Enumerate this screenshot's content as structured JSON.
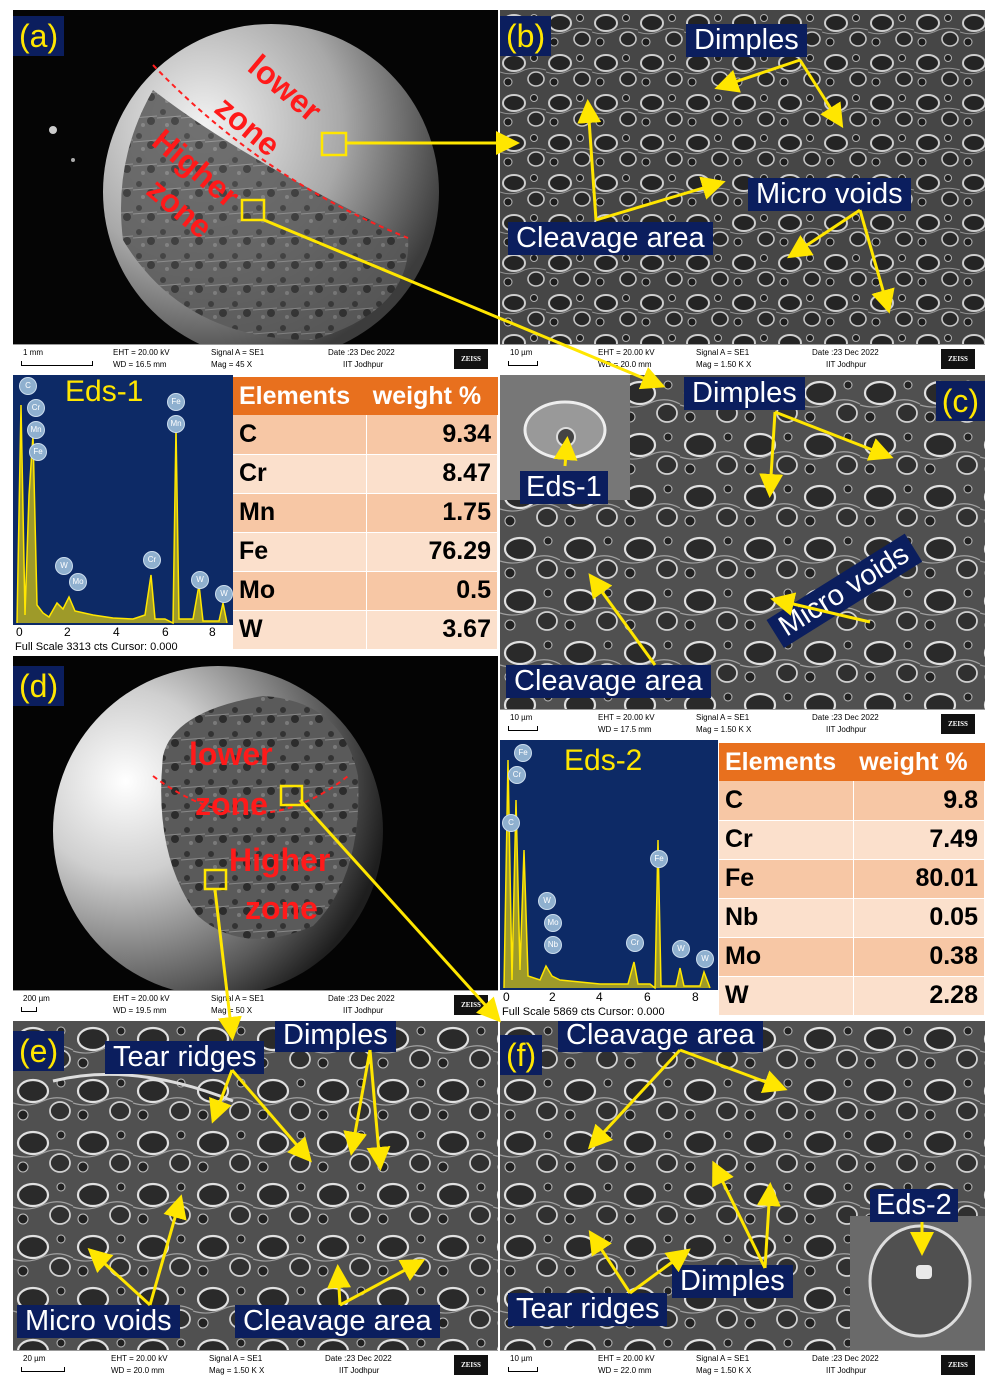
{
  "panels": {
    "a": {
      "label": "(a)",
      "zones": [
        "lower",
        "zone",
        "Higher",
        "zone"
      ]
    },
    "b": {
      "label": "(b)",
      "tags": [
        "Dimples",
        "Micro voids",
        "Cleavage area"
      ]
    },
    "c": {
      "label": "(c)",
      "tags": [
        "Dimples",
        "Cleavage area",
        "Micro voids"
      ],
      "inset": "Eds-1"
    },
    "d": {
      "label": "(d)",
      "zones": [
        "lower",
        "zone",
        "Higher",
        "zone"
      ]
    },
    "e": {
      "label": "(e)",
      "tags": [
        "Dimples",
        "Tear ridges",
        "Micro voids",
        "Cleavage area"
      ]
    },
    "f": {
      "label": "(f)",
      "tags": [
        "Cleavage area",
        "Dimples",
        "Tear ridges"
      ],
      "inset": "Eds-2"
    }
  },
  "info_bars": {
    "a": {
      "scale": "1 mm",
      "eht": "EHT = 20.00 kV",
      "wd": "WD = 16.5 mm",
      "signal": "Signal A = SE1",
      "mag": "Mag =    45 X",
      "date": "Date :23 Dec 2022",
      "org": "IIT Jodhpur",
      "brand": "ZEISS"
    },
    "b": {
      "scale": "10 µm",
      "eht": "EHT = 20.00 kV",
      "wd": "WD = 20.0 mm",
      "signal": "Signal A = SE1",
      "mag": "Mag =    1.50 K X",
      "date": "Date :23 Dec 2022",
      "org": "IIT Jodhpur",
      "brand": "ZEISS"
    },
    "c": {
      "scale": "10 µm",
      "eht": "EHT = 20.00 kV",
      "wd": "WD = 17.5 mm",
      "signal": "Signal A = SE1",
      "mag": "Mag =    1.50 K X",
      "date": "Date :23 Dec 2022",
      "org": "IIT Jodhpur",
      "brand": "ZEISS"
    },
    "d": {
      "scale": "200 µm",
      "eht": "EHT = 20.00 kV",
      "wd": "WD = 19.5 mm",
      "signal": "Signal A = SE1",
      "mag": "Mag =    50 X",
      "date": "Date :23 Dec 2022",
      "org": "IIT Jodhpur",
      "brand": "ZEISS"
    },
    "e": {
      "scale": "20 µm",
      "eht": "EHT = 20.00 kV",
      "wd": "WD = 20.0 mm",
      "signal": "Signal A = SE1",
      "mag": "Mag =    1.50 K X",
      "date": "Date :23 Dec 2022",
      "org": "IIT Jodhpur",
      "brand": "ZEISS"
    },
    "f": {
      "scale": "10 µm",
      "eht": "EHT = 20.00 kV",
      "wd": "WD = 22.0 mm",
      "signal": "Signal A = SE1",
      "mag": "Mag =    1.50 K X",
      "date": "Date :23 Dec 2022",
      "org": "IIT Jodhpur",
      "brand": "ZEISS"
    }
  },
  "eds1": {
    "title": "Eds-1",
    "full_scale": "Full Scale 3313 cts Cursor: 0.000",
    "ticks": [
      "0",
      "2",
      "4",
      "6",
      "8"
    ],
    "peak_labels": [
      "C",
      "Cr",
      "Mn",
      "Fe",
      "Fe",
      "Mn",
      "W",
      "Mo",
      "Cr",
      "W",
      "W"
    ],
    "table": {
      "headers": [
        "Elements",
        "weight %"
      ],
      "rows": [
        [
          "C",
          "9.34"
        ],
        [
          "Cr",
          "8.47"
        ],
        [
          "Mn",
          "1.75"
        ],
        [
          "Fe",
          "76.29"
        ],
        [
          "Mo",
          "0.5"
        ],
        [
          "W",
          "3.67"
        ]
      ]
    }
  },
  "eds2": {
    "title": "Eds-2",
    "full_scale": "Full Scale 5869 cts Cursor: 0.000",
    "ticks": [
      "0",
      "2",
      "4",
      "6",
      "8"
    ],
    "peak_labels": [
      "Fe",
      "Cr",
      "C",
      "W",
      "Mo",
      "Nb",
      "Fe",
      "Cr",
      "W",
      "W"
    ],
    "table": {
      "headers": [
        "Elements",
        "weight %"
      ],
      "rows": [
        [
          "C",
          "9.8"
        ],
        [
          "Cr",
          "7.49"
        ],
        [
          "Fe",
          "80.01"
        ],
        [
          "Nb",
          "0.05"
        ],
        [
          "Mo",
          "0.38"
        ],
        [
          "W",
          "2.28"
        ]
      ]
    }
  },
  "colors": {
    "label_bg": "#0b1e5e",
    "label_text": "#ffe600",
    "arrow": "#ffe600",
    "zone_text": "#ff1a1a",
    "table_header": "#e8701e",
    "eds_bg": "#0d2a66"
  }
}
